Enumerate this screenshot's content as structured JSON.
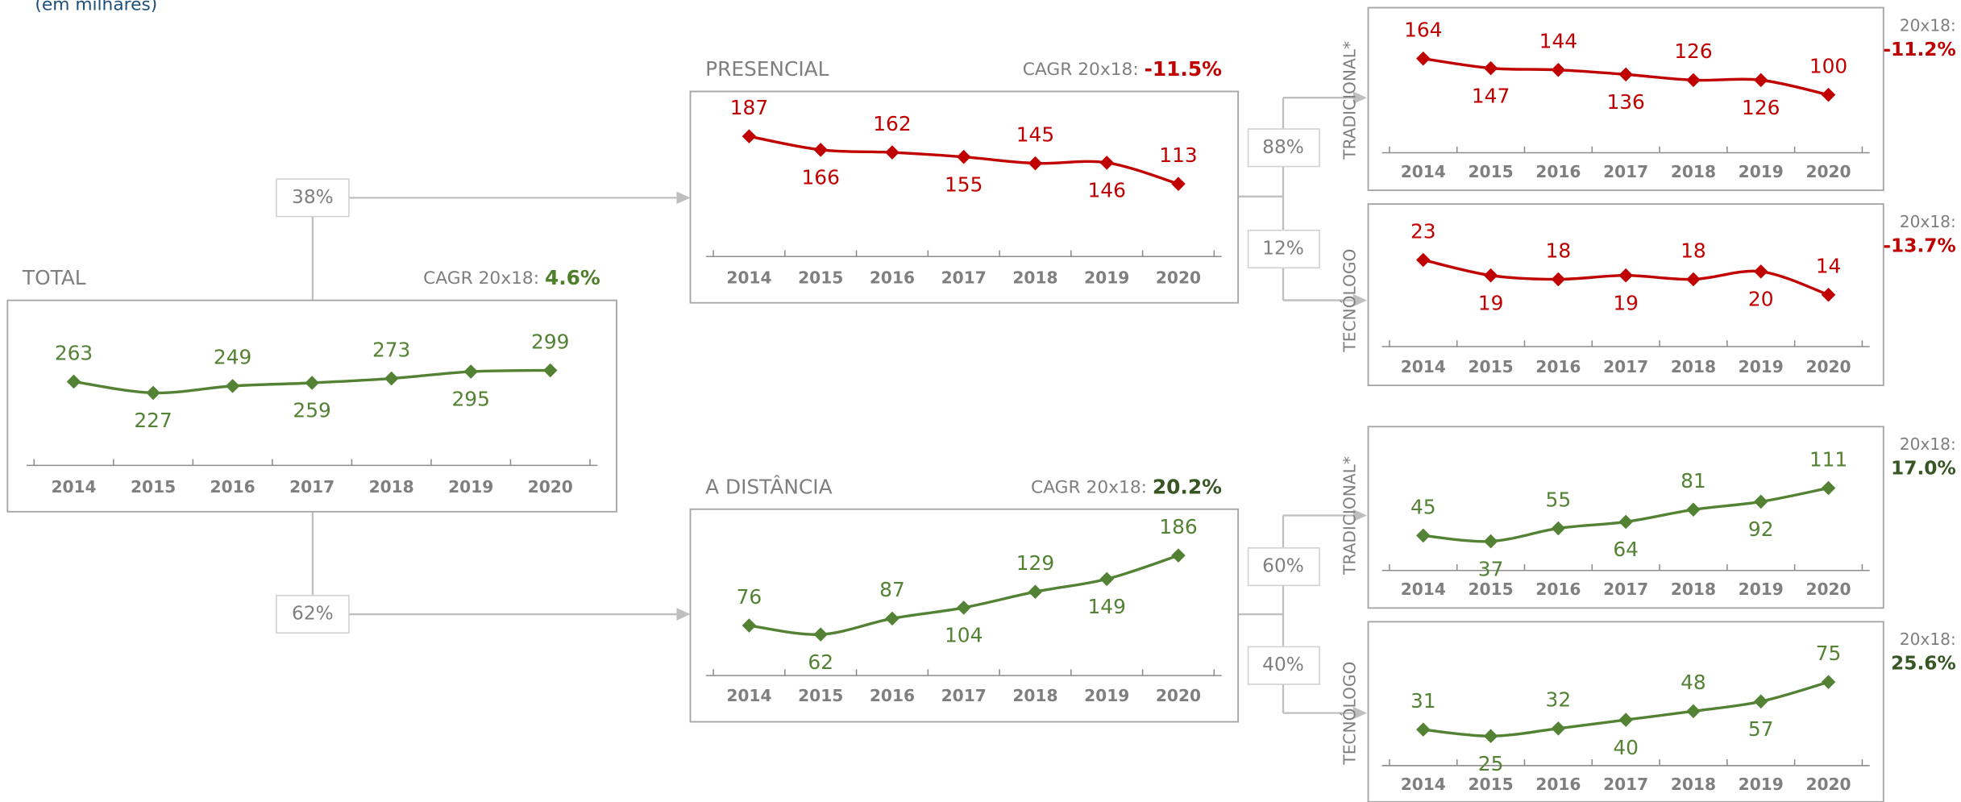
{
  "subtitle": "(em milhares)",
  "flows": [
    "38%",
    "62%",
    "88%",
    "12%",
    "60%",
    "40%"
  ],
  "chart_data": [
    {
      "type": "line",
      "title": "TOTAL",
      "cagr_label": "CAGR 20x18:",
      "cagr": "4.6%",
      "cagr_color": "#4f7f2a",
      "categories": [
        "2014",
        "2015",
        "2016",
        "2017",
        "2018",
        "2019",
        "2020"
      ],
      "values": [
        263,
        227,
        249,
        259,
        273,
        295,
        299
      ],
      "color": "#548235"
    },
    {
      "type": "line",
      "title": "PRESENCIAL",
      "cagr_label": "CAGR 20x18:",
      "cagr": "-11.5%",
      "cagr_color": "#c00000",
      "categories": [
        "2014",
        "2015",
        "2016",
        "2017",
        "2018",
        "2019",
        "2020"
      ],
      "values": [
        187,
        166,
        162,
        155,
        145,
        146,
        113
      ],
      "color": "#c00000"
    },
    {
      "type": "line",
      "title": "A DISTÂNCIA",
      "cagr_label": "CAGR 20x18:",
      "cagr": "20.2%",
      "cagr_color": "#375623",
      "categories": [
        "2014",
        "2015",
        "2016",
        "2017",
        "2018",
        "2019",
        "2020"
      ],
      "values": [
        76,
        62,
        87,
        104,
        129,
        149,
        186
      ],
      "color": "#548235"
    },
    {
      "type": "line",
      "title": "TRADICIONAL*",
      "cagr_label": "20x18:",
      "cagr": "-11.2%",
      "cagr_color": "#c00000",
      "categories": [
        "2014",
        "2015",
        "2016",
        "2017",
        "2018",
        "2019",
        "2020"
      ],
      "values": [
        164,
        147,
        144,
        136,
        126,
        126,
        100
      ],
      "color": "#c00000"
    },
    {
      "type": "line",
      "title": "TECNÓLOGO",
      "cagr_label": "20x18:",
      "cagr": "-13.7%",
      "cagr_color": "#c00000",
      "categories": [
        "2014",
        "2015",
        "2016",
        "2017",
        "2018",
        "2019",
        "2020"
      ],
      "values": [
        23,
        19,
        18,
        19,
        18,
        20,
        14
      ],
      "color": "#c00000"
    },
    {
      "type": "line",
      "title": "TRADICIONAL*",
      "cagr_label": "20x18:",
      "cagr": "17.0%",
      "cagr_color": "#375623",
      "categories": [
        "2014",
        "2015",
        "2016",
        "2017",
        "2018",
        "2019",
        "2020"
      ],
      "values": [
        45,
        37,
        55,
        64,
        81,
        92,
        111
      ],
      "color": "#548235"
    },
    {
      "type": "line",
      "title": "TECNÓLOGO",
      "cagr_label": "20x18:",
      "cagr": "25.6%",
      "cagr_color": "#375623",
      "categories": [
        "2014",
        "2015",
        "2016",
        "2017",
        "2018",
        "2019",
        "2020"
      ],
      "values": [
        31,
        25,
        32,
        40,
        48,
        57,
        75
      ],
      "color": "#548235"
    }
  ]
}
